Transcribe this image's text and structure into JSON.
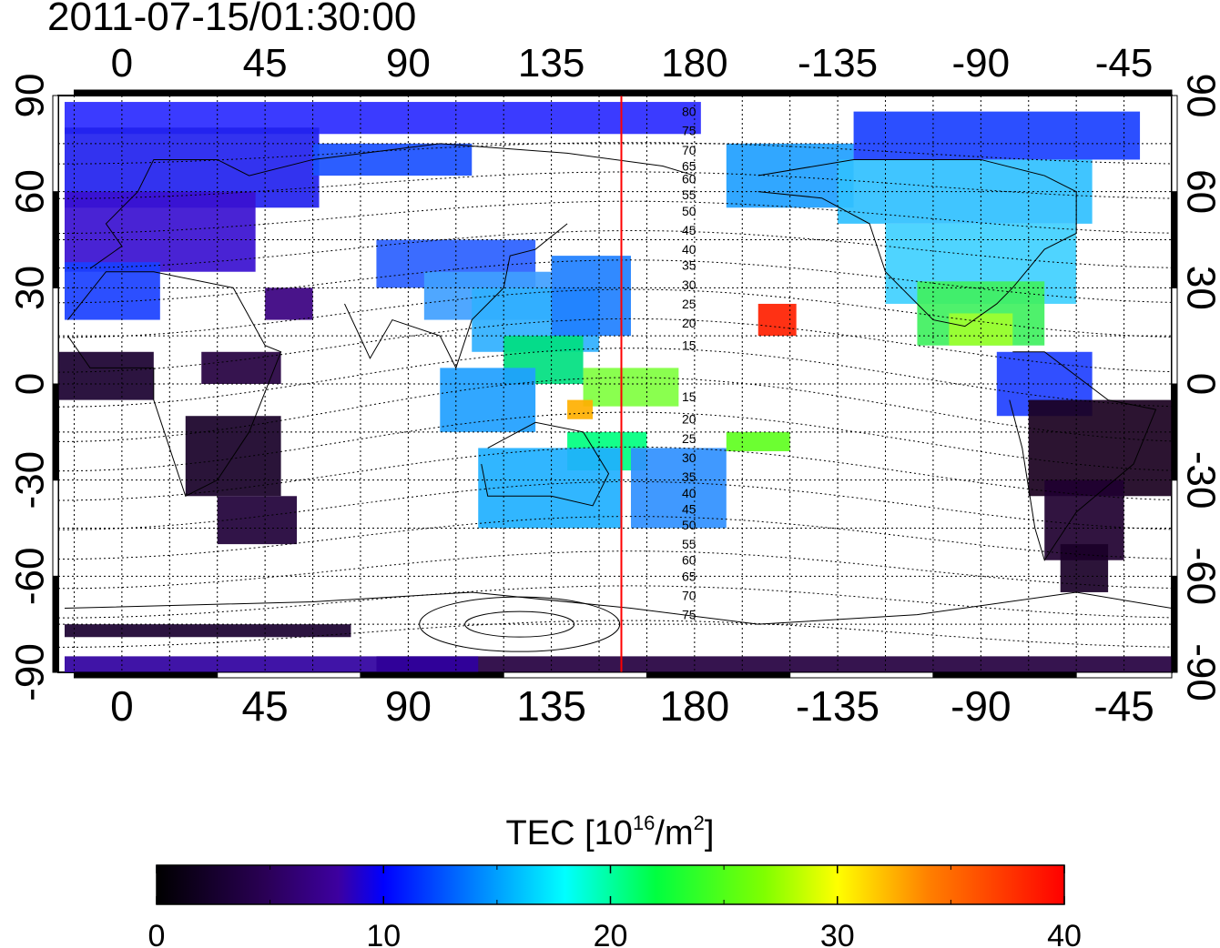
{
  "timestamp": "2011-07-15/01:30:00",
  "axes": {
    "lon_ticks": [
      "0",
      "45",
      "90",
      "135",
      "180",
      "-135",
      "-90",
      "-45"
    ],
    "lat_ticks": [
      "90",
      "60",
      "30",
      "0",
      "-30",
      "-60",
      "-90"
    ]
  },
  "map": {
    "lon_range": [
      -20,
      330
    ],
    "lat_range": [
      -90,
      90
    ],
    "gridlines": "dotted",
    "marker_line_lon": 157,
    "marker_line_color": "#ff0000",
    "contour_labels_north": [
      "80",
      "75",
      "70",
      "65",
      "60",
      "55",
      "50",
      "45",
      "40",
      "35",
      "30",
      "25",
      "20",
      "15"
    ],
    "contour_labels_south": [
      "15",
      "20",
      "25",
      "30",
      "35",
      "40",
      "45",
      "50",
      "55",
      "60",
      "65",
      "70",
      "75"
    ]
  },
  "colorbar": {
    "label_prefix": "TEC  [10",
    "label_exp": "16",
    "label_mid": "/m",
    "label_exp2": "2",
    "label_suffix": "]",
    "ticks": [
      "0",
      "10",
      "20",
      "30",
      "40"
    ],
    "min": 0,
    "max": 40,
    "colors": [
      "#000000",
      "#2a0055",
      "#3d00a0",
      "#0000ff",
      "#0080ff",
      "#00ffff",
      "#00ff40",
      "#80ff00",
      "#ffff00",
      "#ff8000",
      "#ff0000"
    ]
  }
}
